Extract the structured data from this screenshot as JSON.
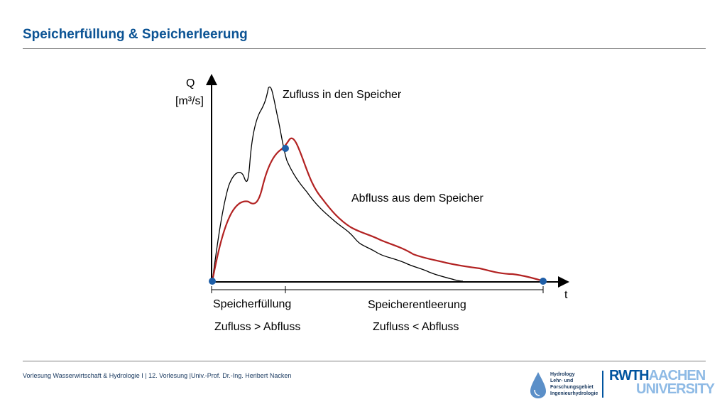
{
  "slide": {
    "title": "Speicherfüllung & Speicherleerung",
    "footer": "Vorlesung Wasserwirtschaft & Hydrologie I | 12. Vorlesung |Univ.-Prof. Dr.-Ing. Heribert Nacken"
  },
  "diagram": {
    "y_axis_symbol": "Q",
    "y_axis_unit": "[m³/s]",
    "x_axis_symbol": "t",
    "inflow_label": "Zufluss in den Speicher",
    "outflow_label": "Abfluss aus dem Speicher",
    "phase_fill_label": "Speicherfüllung",
    "phase_fill_condition": "Zufluss > Abfluss",
    "phase_empty_label": "Speicherentleerung",
    "phase_empty_condition": "Zufluss < Abfluss",
    "inflow_color": "#000000",
    "outflow_color": "#b22222",
    "marker_color": "#1f5fa8"
  },
  "logos": {
    "hydrology_lines": [
      "Hydrology",
      "Lehr- und",
      "Forschungsgebiet",
      "Ingenieurhydrologie"
    ],
    "rwth_part1": "RWTH",
    "rwth_part2": "AACHEN",
    "rwth_line2": "UNIVERSITY",
    "brand_color": "#00549f"
  }
}
